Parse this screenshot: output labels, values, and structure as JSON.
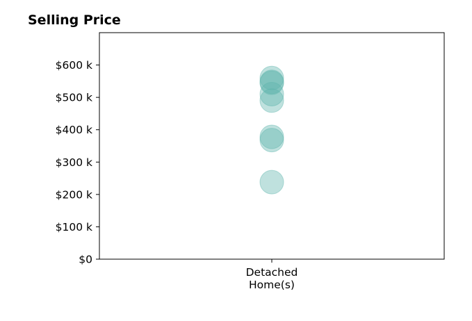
{
  "chart_data": {
    "type": "scatter",
    "title": "Selling Price",
    "xlabel": "",
    "ylabel": "",
    "categories": [
      [
        "Detached",
        "Home(s)"
      ]
    ],
    "ylim": [
      0,
      700000
    ],
    "y_ticks": [
      0,
      100000,
      200000,
      300000,
      400000,
      500000,
      600000
    ],
    "y_tick_labels": [
      "$0",
      "$100 k",
      "$200 k",
      "$300 k",
      "$400 k",
      "$500 k",
      "$600 k"
    ],
    "grid": false,
    "legend": "none",
    "marker_color": "#5fb5ad",
    "marker_alpha": 0.4,
    "series": [
      {
        "category_index": 0,
        "values": [
          560000,
          545000,
          548000,
          510000,
          490000,
          378000,
          368000,
          238000
        ]
      }
    ]
  }
}
